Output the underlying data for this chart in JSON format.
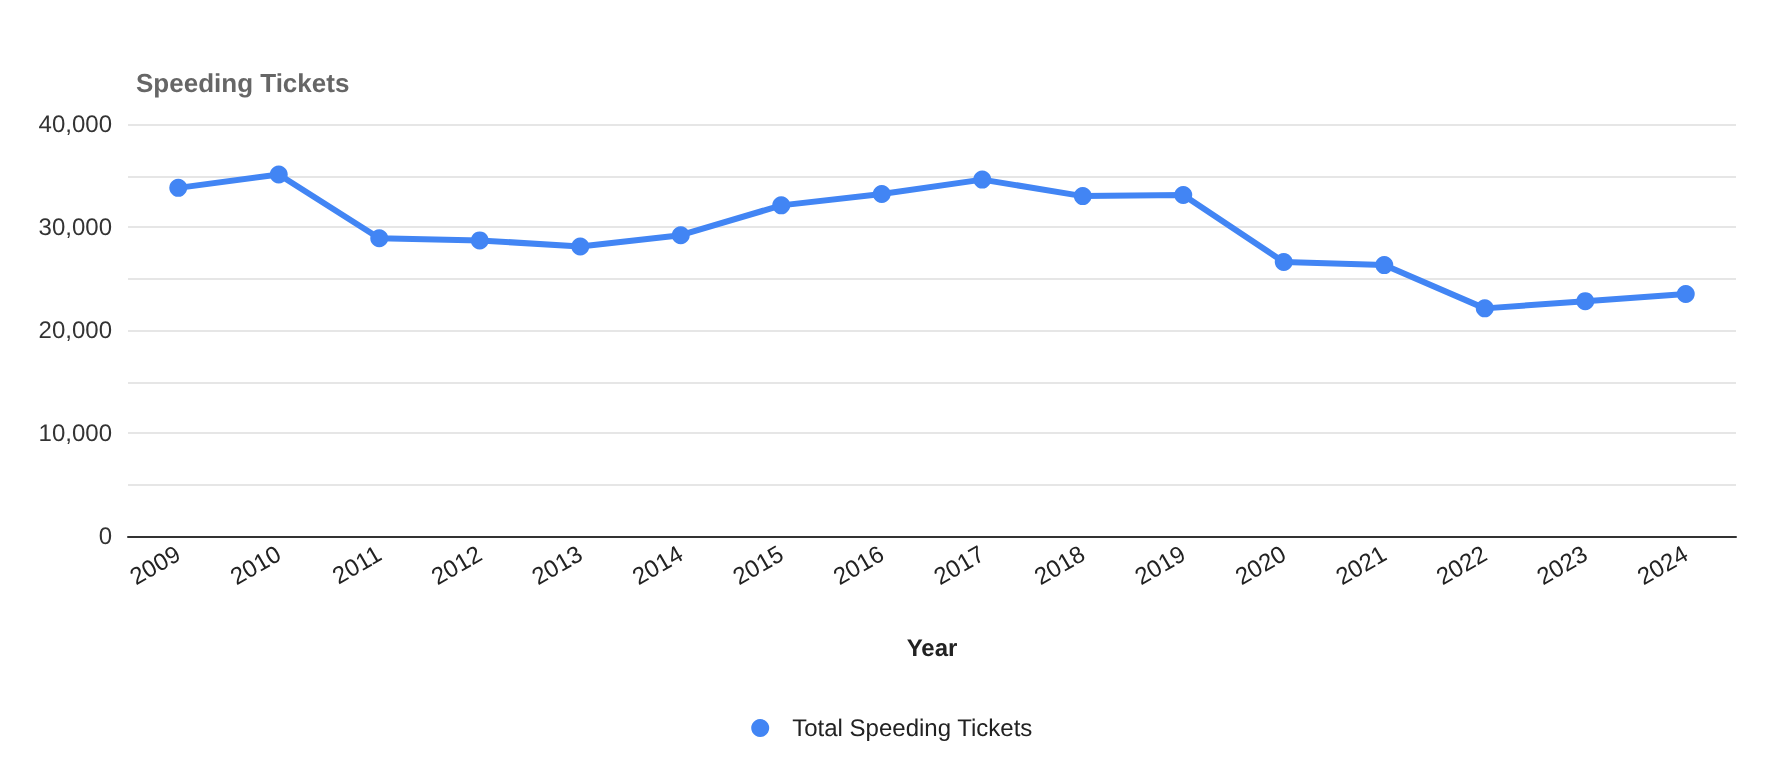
{
  "chart_data": {
    "type": "line",
    "title": "Speeding Tickets",
    "xlabel": "Year",
    "categories": [
      "2009",
      "2010",
      "2011",
      "2012",
      "2013",
      "2014",
      "2015",
      "2016",
      "2017",
      "2018",
      "2019",
      "2020",
      "2021",
      "2022",
      "2023",
      "2024"
    ],
    "series": [
      {
        "name": "Total Speeding Tickets",
        "color": "#4285f4",
        "values": [
          33800,
          35100,
          28900,
          28700,
          28100,
          29200,
          32100,
          33200,
          34600,
          33000,
          33100,
          26600,
          26300,
          22100,
          22800,
          23500
        ]
      }
    ],
    "ylim": [
      0,
      40000
    ],
    "yticks": [
      0,
      {
        "value": 5000,
        "label": null
      },
      {
        "value": 10000,
        "label": "10,000"
      },
      {
        "value": 15000,
        "label": null
      },
      {
        "value": 20000,
        "label": "20,000"
      },
      {
        "value": 25000,
        "label": null
      },
      {
        "value": 30000,
        "label": "30,000"
      },
      {
        "value": 35000,
        "label": null
      },
      {
        "value": 40000,
        "label": "40,000"
      }
    ],
    "grid": "y",
    "legend": "bottom",
    "marker": "circle",
    "line_style": "solid"
  }
}
